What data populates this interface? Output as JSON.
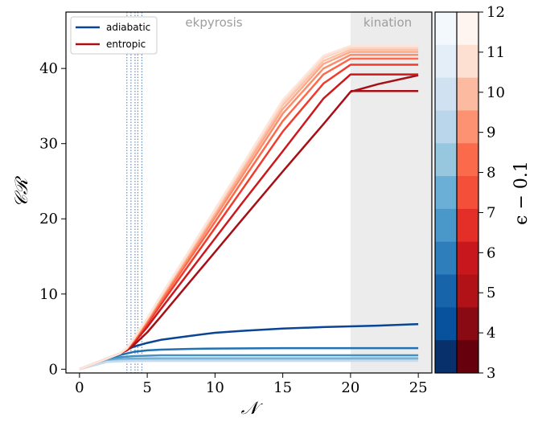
{
  "chart_data": {
    "type": "line",
    "xlabel": "𝒩",
    "ylabel": "𝒞ℛ",
    "xlim": [
      -1,
      26
    ],
    "ylim": [
      -0.5,
      47.5
    ],
    "x_ticks": [
      0,
      5,
      10,
      15,
      20,
      25
    ],
    "y_ticks": [
      0,
      10,
      20,
      30,
      40
    ],
    "grid": false,
    "legend": {
      "placement": "top-left",
      "entries": [
        "adiabatic",
        "entropic"
      ]
    },
    "regions": [
      {
        "label": "ekpyrosis",
        "x_range": [
          0,
          20
        ],
        "shaded": false
      },
      {
        "label": "kination",
        "x_range": [
          20,
          26
        ],
        "shaded": true,
        "color": "#ececec"
      }
    ],
    "vertical_lines": [
      3.5,
      3.8,
      4.1,
      4.3,
      4.6
    ],
    "colorbar": {
      "label": "ϵ − 0.1",
      "ticks": [
        3,
        4,
        5,
        6,
        7,
        8,
        9,
        10,
        11,
        12
      ]
    },
    "series": [
      {
        "name": "adiabatic",
        "epsilon": 3,
        "color": "#084594",
        "x": [
          0,
          2,
          3,
          3.5,
          4,
          5,
          6,
          8,
          10,
          12,
          15,
          18,
          20,
          22,
          25
        ],
        "y": [
          0,
          1.4,
          2.1,
          2.6,
          3.0,
          3.5,
          3.9,
          4.4,
          4.85,
          5.1,
          5.4,
          5.6,
          5.7,
          5.8,
          6.0
        ]
      },
      {
        "name": "adiabatic",
        "epsilon": 4,
        "color": "#2171b5",
        "x": [
          0,
          2,
          3,
          4,
          5,
          6,
          8,
          10,
          15,
          20,
          25
        ],
        "y": [
          0,
          1.3,
          1.9,
          2.3,
          2.5,
          2.6,
          2.7,
          2.75,
          2.8,
          2.8,
          2.8
        ]
      },
      {
        "name": "adiabatic",
        "epsilon": 5,
        "color": "#4292c6",
        "x": [
          0,
          2,
          3,
          4,
          5,
          6,
          8,
          10,
          15,
          20,
          25
        ],
        "y": [
          0,
          1.2,
          1.6,
          1.75,
          1.8,
          1.85,
          1.85,
          1.85,
          1.85,
          1.85,
          1.85
        ]
      },
      {
        "name": "adiabatic",
        "epsilon": 6,
        "color": "#6baed6",
        "x": [
          0,
          2,
          3,
          4,
          5,
          6,
          10,
          25
        ],
        "y": [
          0,
          1.1,
          1.35,
          1.42,
          1.45,
          1.45,
          1.45,
          1.45
        ]
      },
      {
        "name": "adiabatic",
        "epsilon": 7,
        "color": "#9ecae1",
        "x": [
          0,
          2,
          3,
          4,
          6,
          10,
          25
        ],
        "y": [
          0,
          1.0,
          1.15,
          1.2,
          1.22,
          1.22,
          1.22
        ]
      },
      {
        "name": "adiabatic",
        "epsilon": 8,
        "color": "#c6dbef",
        "x": [
          0,
          2,
          3,
          4,
          6,
          25
        ],
        "y": [
          0,
          0.95,
          1.05,
          1.08,
          1.1,
          1.1
        ]
      },
      {
        "name": "entropic",
        "epsilon": 3,
        "color": "#a50f15",
        "x": [
          0,
          2,
          3,
          3.5,
          4,
          5,
          6,
          8,
          10,
          12,
          15,
          18,
          20,
          22,
          25
        ],
        "y": [
          0,
          1.4,
          2.1,
          2.5,
          3.2,
          4.9,
          7.0,
          11.3,
          15.6,
          19.9,
          26.3,
          32.6,
          36.9,
          37.9,
          39.1
        ]
      },
      {
        "name": "entropic",
        "epsilon": 3,
        "color": "#a50f15",
        "x": [
          20,
          25
        ],
        "y": [
          37.0,
          37.0
        ]
      },
      {
        "name": "entropic",
        "epsilon": 4,
        "color": "#cb181d",
        "x": [
          0,
          2,
          3,
          3.5,
          4,
          5,
          6,
          8,
          10,
          12,
          15,
          18,
          20,
          25
        ],
        "y": [
          0,
          1.4,
          2.1,
          2.6,
          3.5,
          5.6,
          8.0,
          12.7,
          17.4,
          22.1,
          29.0,
          36.0,
          39.2,
          39.2
        ]
      },
      {
        "name": "entropic",
        "epsilon": 5,
        "color": "#ef3b2c",
        "x": [
          0,
          2,
          3,
          3.5,
          4,
          5,
          6,
          8,
          10,
          12,
          15,
          18,
          20,
          25
        ],
        "y": [
          0,
          1.4,
          2.1,
          2.7,
          3.7,
          6.0,
          8.6,
          13.7,
          18.8,
          23.9,
          31.6,
          38.0,
          40.5,
          40.5
        ]
      },
      {
        "name": "entropic",
        "epsilon": 6,
        "color": "#fb6a4a",
        "x": [
          0,
          2,
          3,
          3.5,
          4,
          5,
          6,
          8,
          10,
          12,
          15,
          18,
          20,
          25
        ],
        "y": [
          0,
          1.4,
          2.1,
          2.7,
          3.8,
          6.3,
          9.0,
          14.3,
          19.6,
          25.0,
          33.0,
          39.2,
          41.3,
          41.3
        ]
      },
      {
        "name": "entropic",
        "epsilon": 7,
        "color": "#fc8d6a",
        "x": [
          0,
          2,
          3,
          3.5,
          4,
          5,
          6,
          8,
          10,
          12,
          15,
          18,
          20,
          25
        ],
        "y": [
          0,
          1.4,
          2.1,
          2.8,
          3.9,
          6.5,
          9.3,
          14.7,
          20.2,
          25.7,
          34.0,
          40.0,
          41.8,
          41.8
        ]
      },
      {
        "name": "entropic",
        "epsilon": 8,
        "color": "#fcaa8a",
        "x": [
          0,
          2,
          3,
          3.5,
          4,
          5,
          6,
          8,
          10,
          12,
          15,
          18,
          20,
          25
        ],
        "y": [
          0,
          1.4,
          2.1,
          2.8,
          4.0,
          6.6,
          9.5,
          15.0,
          20.6,
          26.2,
          34.6,
          40.6,
          42.2,
          42.2
        ]
      },
      {
        "name": "entropic",
        "epsilon": 9,
        "color": "#fcc3ab",
        "x": [
          0,
          2,
          3,
          3.5,
          4,
          5,
          6,
          8,
          10,
          12,
          15,
          18,
          20,
          25
        ],
        "y": [
          0,
          1.4,
          2.1,
          2.8,
          4.0,
          6.7,
          9.6,
          15.2,
          20.9,
          26.6,
          35.1,
          41.0,
          42.5,
          42.5
        ]
      },
      {
        "name": "entropic",
        "epsilon": 10,
        "color": "#fdd7c6",
        "x": [
          0,
          2,
          3,
          3.5,
          4,
          5,
          6,
          8,
          10,
          12,
          15,
          18,
          20,
          25
        ],
        "y": [
          0,
          1.4,
          2.1,
          2.8,
          4.1,
          6.8,
          9.7,
          15.4,
          21.1,
          26.9,
          35.5,
          41.4,
          42.8,
          42.8
        ]
      },
      {
        "name": "entropic",
        "epsilon": 11,
        "color": "#fee5d9",
        "x": [
          0,
          2,
          3,
          3.5,
          4,
          5,
          6,
          8,
          10,
          12,
          15,
          18,
          20,
          25
        ],
        "y": [
          0,
          1.4,
          2.1,
          2.8,
          4.1,
          6.8,
          9.8,
          15.5,
          21.3,
          27.1,
          35.8,
          41.7,
          43.0,
          43.0
        ]
      }
    ]
  }
}
